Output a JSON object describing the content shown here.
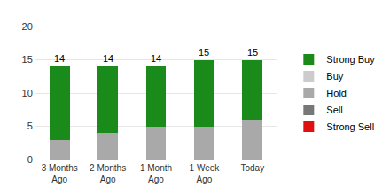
{
  "chart_data": {
    "type": "bar",
    "stacked": true,
    "categories": [
      "3 Months Ago",
      "2 Months Ago",
      "1 Month Ago",
      "1 Week Ago",
      "Today"
    ],
    "series": [
      {
        "name": "Strong Buy",
        "color": "#1a8a1a",
        "values": [
          11,
          10,
          9,
          10,
          9
        ]
      },
      {
        "name": "Buy",
        "color": "#cccccc",
        "values": [
          0,
          0,
          0,
          0,
          0
        ]
      },
      {
        "name": "Hold",
        "color": "#a9a9a9",
        "values": [
          3,
          4,
          5,
          5,
          6
        ]
      },
      {
        "name": "Sell",
        "color": "#777777",
        "values": [
          0,
          0,
          0,
          0,
          0
        ]
      },
      {
        "name": "Strong Sell",
        "color": "#e01010",
        "values": [
          0,
          0,
          0,
          0,
          0
        ]
      }
    ],
    "totals": [
      14,
      14,
      14,
      15,
      15
    ],
    "ylim": [
      0,
      20
    ],
    "yticks": [
      0,
      5,
      10,
      15,
      20
    ],
    "grid": true,
    "legend": "right"
  }
}
